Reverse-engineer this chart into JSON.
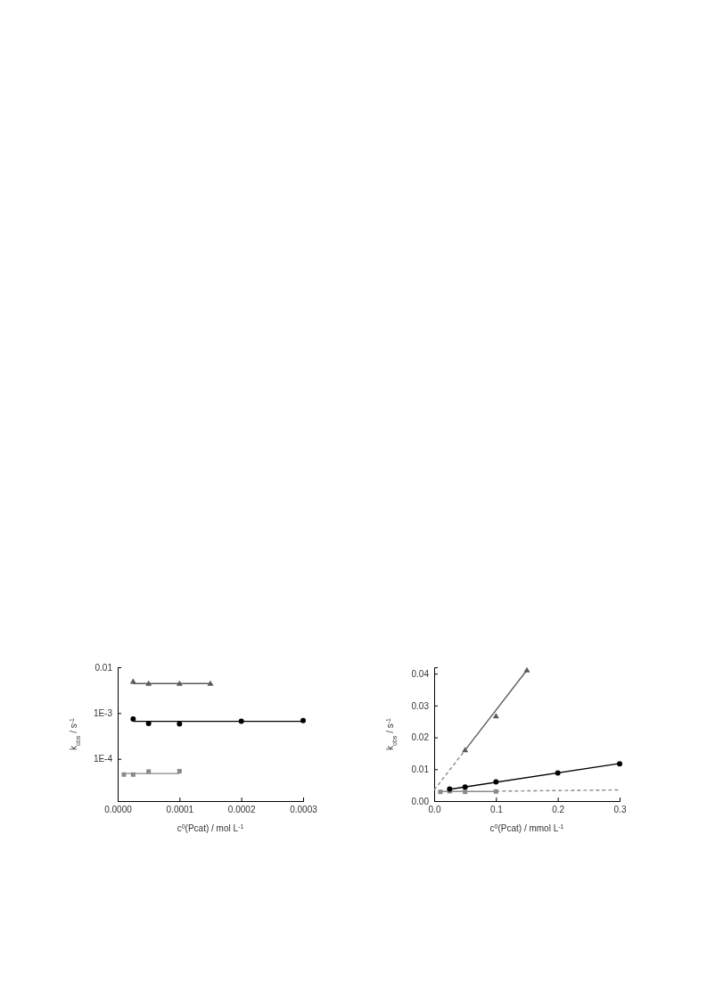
{
  "chart_data": [
    {
      "type": "scatter",
      "log": true,
      "xlabel": "c$^{0}$(Pcat) / mol L$^{-1}$",
      "ylabel": "k$_{obs}$ / s$^{-1}$",
      "xlim": [
        0,
        0.0003
      ],
      "xticks": [
        {
          "value": 0,
          "label": "0.0000"
        },
        {
          "value": 0.0001,
          "label": "0.0001"
        },
        {
          "value": 0.0002,
          "label": "0.0002"
        },
        {
          "value": 0.0003,
          "label": "0.0003"
        }
      ],
      "ylim": [
        1.2e-05,
        0.01
      ],
      "yticks": [
        0.01,
        {
          "value": 0.001,
          "label": "1E-3"
        },
        {
          "value": 0.0001,
          "label": "1E-4"
        }
      ],
      "series": [
        {
          "type": "line",
          "color": "#5a5a5a",
          "line_style": "solid",
          "x": [
            2.5e-05,
            0.00015
          ],
          "values": [
            0.0044,
            0.0044
          ]
        },
        {
          "type": "line",
          "color": "#000000",
          "line_style": "solid",
          "x": [
            2.5e-05,
            0.0003
          ],
          "values": [
            0.00066,
            0.00066
          ]
        },
        {
          "type": "line",
          "color": "#8a8a8a",
          "line_style": "solid",
          "x": [
            1e-05,
            0.0001
          ],
          "values": [
            4.8e-05,
            4.8e-05
          ]
        },
        {
          "type": "scatter",
          "color": "#5a5a5a",
          "marker": "triangle",
          "x": [
            2.5e-05,
            5e-05,
            0.0001,
            0.00015
          ],
          "values": [
            0.0049,
            0.0044,
            0.0044,
            0.0044
          ]
        },
        {
          "type": "scatter",
          "color": "#000000",
          "marker": "circle",
          "x": [
            2.5e-05,
            5e-05,
            0.0001,
            0.0002,
            0.0003
          ],
          "values": [
            0.00074,
            0.00059,
            0.00058,
            0.00066,
            0.00069
          ]
        },
        {
          "type": "scatter",
          "color": "#8a8a8a",
          "marker": "square",
          "x": [
            1e-05,
            2.5e-05,
            5e-05,
            0.0001
          ],
          "values": [
            4.55e-05,
            4.55e-05,
            5.3e-05,
            5.4e-05
          ]
        }
      ]
    },
    {
      "type": "scatter",
      "xlabel": "c$^{0}$(Pcat) / mmol L$^{-1}$",
      "ylabel": "k$_{obs}$ / s$^{-1}$",
      "xlim": [
        0,
        0.3
      ],
      "xticks": [
        {
          "value": 0,
          "label": "0.0"
        },
        0.1,
        0.2,
        0.3
      ],
      "ylim": [
        0,
        0.042
      ],
      "yticks": [
        {
          "value": 0,
          "label": "0.00"
        },
        0.01,
        0.02,
        0.03,
        0.04
      ],
      "series": [
        {
          "type": "line",
          "color": "#8a8a8a",
          "line_style": "dashed",
          "x": [
            0,
            0.05
          ],
          "values": [
            0.0035,
            0.016
          ]
        },
        {
          "type": "line",
          "color": "#5a5a5a",
          "line_style": "solid",
          "x": [
            0.05,
            0.15
          ],
          "values": [
            0.016,
            0.0411
          ]
        },
        {
          "type": "line",
          "color": "#000000",
          "line_style": "solid",
          "x": [
            0.025,
            0.3
          ],
          "values": [
            0.0037,
            0.0118
          ]
        },
        {
          "type": "line",
          "color": "#8a8a8a",
          "line_style": "solid",
          "x": [
            0.01,
            0.1
          ],
          "values": [
            0.003,
            0.003
          ]
        },
        {
          "type": "line",
          "color": "#8a8a8a",
          "line_style": "dashed",
          "x": [
            0.1,
            0.3
          ],
          "values": [
            0.0031,
            0.0035
          ]
        },
        {
          "type": "scatter",
          "color": "#8a8a8a",
          "marker": "square",
          "x": [
            0.01,
            0.025,
            0.05,
            0.1
          ],
          "values": [
            0.0029,
            0.0031,
            0.0029,
            0.003
          ]
        },
        {
          "type": "scatter",
          "color": "#5a5a5a",
          "marker": "triangle",
          "x": [
            0.05,
            0.1,
            0.15
          ],
          "values": [
            0.016,
            0.0267,
            0.0411
          ]
        },
        {
          "type": "scatter",
          "color": "#000000",
          "marker": "circle",
          "x": [
            0.025,
            0.05,
            0.1,
            0.2,
            0.3
          ],
          "values": [
            0.0038,
            0.0044,
            0.006,
            0.0088,
            0.0117
          ]
        }
      ]
    }
  ]
}
